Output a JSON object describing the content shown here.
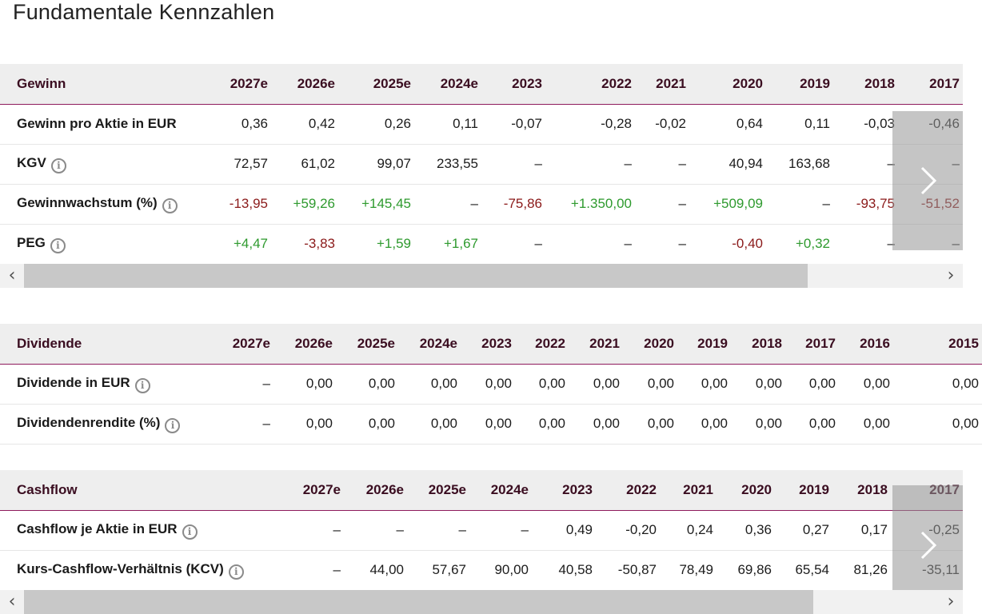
{
  "page": {
    "title": "Fundamentale Kennzahlen"
  },
  "gewinn": {
    "header": [
      "Gewinn",
      "2027e",
      "2026e",
      "2025e",
      "2024e",
      "2023",
      "2022",
      "2021",
      "2020",
      "2019",
      "2018",
      "2017"
    ],
    "rows": [
      {
        "label": "Gewinn pro Aktie in EUR",
        "info": false,
        "cells": [
          {
            "v": "0,36",
            "c": "neutral"
          },
          {
            "v": "0,42",
            "c": "neutral"
          },
          {
            "v": "0,26",
            "c": "neutral"
          },
          {
            "v": "0,11",
            "c": "neutral"
          },
          {
            "v": "-0,07",
            "c": "neutral"
          },
          {
            "v": "-0,28",
            "c": "neutral"
          },
          {
            "v": "-0,02",
            "c": "neutral"
          },
          {
            "v": "0,64",
            "c": "neutral"
          },
          {
            "v": "0,11",
            "c": "neutral"
          },
          {
            "v": "-0,03",
            "c": "neutral"
          },
          {
            "v": "-0,46",
            "c": "neutral"
          }
        ]
      },
      {
        "label": "KGV",
        "info": true,
        "cells": [
          {
            "v": "72,57",
            "c": "neutral"
          },
          {
            "v": "61,02",
            "c": "neutral"
          },
          {
            "v": "99,07",
            "c": "neutral"
          },
          {
            "v": "233,55",
            "c": "neutral"
          },
          {
            "v": "–",
            "c": "neutral"
          },
          {
            "v": "–",
            "c": "neutral"
          },
          {
            "v": "–",
            "c": "neutral"
          },
          {
            "v": "40,94",
            "c": "neutral"
          },
          {
            "v": "163,68",
            "c": "neutral"
          },
          {
            "v": "–",
            "c": "neutral"
          },
          {
            "v": "–",
            "c": "neutral"
          }
        ]
      },
      {
        "label": "Gewinnwachstum (%)",
        "info": true,
        "cells": [
          {
            "v": "-13,95",
            "c": "neg"
          },
          {
            "v": "+59,26",
            "c": "pos"
          },
          {
            "v": "+145,45",
            "c": "pos"
          },
          {
            "v": "–",
            "c": "neutral"
          },
          {
            "v": "-75,86",
            "c": "neg"
          },
          {
            "v": "+1.350,00",
            "c": "pos"
          },
          {
            "v": "–",
            "c": "neutral"
          },
          {
            "v": "+509,09",
            "c": "pos"
          },
          {
            "v": "–",
            "c": "neutral"
          },
          {
            "v": "-93,75",
            "c": "neg"
          },
          {
            "v": "-51,52",
            "c": "neg"
          }
        ]
      },
      {
        "label": "PEG",
        "info": true,
        "cells": [
          {
            "v": "+4,47",
            "c": "pos"
          },
          {
            "v": "-3,83",
            "c": "neg"
          },
          {
            "v": "+1,59",
            "c": "pos"
          },
          {
            "v": "+1,67",
            "c": "pos"
          },
          {
            "v": "–",
            "c": "neutral"
          },
          {
            "v": "–",
            "c": "neutral"
          },
          {
            "v": "–",
            "c": "neutral"
          },
          {
            "v": "-0,40",
            "c": "neg"
          },
          {
            "v": "+0,32",
            "c": "pos"
          },
          {
            "v": "–",
            "c": "neutral"
          },
          {
            "v": "–",
            "c": "neutral"
          }
        ]
      }
    ],
    "scroll_fraction": 0.85
  },
  "dividende": {
    "header": [
      "Dividende",
      "2027e",
      "2026e",
      "2025e",
      "2024e",
      "2023",
      "2022",
      "2021",
      "2020",
      "2019",
      "2018",
      "2017",
      "2016",
      "2015"
    ],
    "rows": [
      {
        "label": "Dividende in EUR",
        "info": true,
        "cells": [
          {
            "v": "–",
            "c": "neutral"
          },
          {
            "v": "0,00",
            "c": "neutral"
          },
          {
            "v": "0,00",
            "c": "neutral"
          },
          {
            "v": "0,00",
            "c": "neutral"
          },
          {
            "v": "0,00",
            "c": "neutral"
          },
          {
            "v": "0,00",
            "c": "neutral"
          },
          {
            "v": "0,00",
            "c": "neutral"
          },
          {
            "v": "0,00",
            "c": "neutral"
          },
          {
            "v": "0,00",
            "c": "neutral"
          },
          {
            "v": "0,00",
            "c": "neutral"
          },
          {
            "v": "0,00",
            "c": "neutral"
          },
          {
            "v": "0,00",
            "c": "neutral"
          },
          {
            "v": "0,00",
            "c": "neutral"
          }
        ]
      },
      {
        "label": "Dividendenrendite (%)",
        "info": true,
        "cells": [
          {
            "v": "–",
            "c": "neutral"
          },
          {
            "v": "0,00",
            "c": "neutral"
          },
          {
            "v": "0,00",
            "c": "neutral"
          },
          {
            "v": "0,00",
            "c": "neutral"
          },
          {
            "v": "0,00",
            "c": "neutral"
          },
          {
            "v": "0,00",
            "c": "neutral"
          },
          {
            "v": "0,00",
            "c": "neutral"
          },
          {
            "v": "0,00",
            "c": "neutral"
          },
          {
            "v": "0,00",
            "c": "neutral"
          },
          {
            "v": "0,00",
            "c": "neutral"
          },
          {
            "v": "0,00",
            "c": "neutral"
          },
          {
            "v": "0,00",
            "c": "neutral"
          },
          {
            "v": "0,00",
            "c": "neutral"
          }
        ]
      }
    ]
  },
  "cashflow": {
    "header": [
      "Cashflow",
      "2027e",
      "2026e",
      "2025e",
      "2024e",
      "2023",
      "2022",
      "2021",
      "2020",
      "2019",
      "2018",
      "2017"
    ],
    "rows": [
      {
        "label": "Cashflow je Aktie in EUR",
        "info": true,
        "cells": [
          {
            "v": "–",
            "c": "neutral"
          },
          {
            "v": "–",
            "c": "neutral"
          },
          {
            "v": "–",
            "c": "neutral"
          },
          {
            "v": "–",
            "c": "neutral"
          },
          {
            "v": "0,49",
            "c": "neutral"
          },
          {
            "v": "-0,20",
            "c": "neutral"
          },
          {
            "v": "0,24",
            "c": "neutral"
          },
          {
            "v": "0,36",
            "c": "neutral"
          },
          {
            "v": "0,27",
            "c": "neutral"
          },
          {
            "v": "0,17",
            "c": "neutral"
          },
          {
            "v": "-0,25",
            "c": "neutral"
          }
        ]
      },
      {
        "label": "Kurs-Cashflow-Verhältnis (KCV)",
        "info": true,
        "cells": [
          {
            "v": "–",
            "c": "neutral"
          },
          {
            "v": "44,00",
            "c": "neutral"
          },
          {
            "v": "57,67",
            "c": "neutral"
          },
          {
            "v": "90,00",
            "c": "neutral"
          },
          {
            "v": "40,58",
            "c": "neutral"
          },
          {
            "v": "-50,87",
            "c": "neutral"
          },
          {
            "v": "78,49",
            "c": "neutral"
          },
          {
            "v": "69,86",
            "c": "neutral"
          },
          {
            "v": "65,54",
            "c": "neutral"
          },
          {
            "v": "81,26",
            "c": "neutral"
          },
          {
            "v": "-35,11",
            "c": "neutral"
          }
        ]
      }
    ],
    "scroll_fraction": 0.86
  },
  "controls": {
    "scroll_left_glyph": "‹",
    "scroll_right_glyph": "›",
    "info_glyph": "i",
    "next_icon": "chevron-right-icon"
  },
  "colors": {
    "accent": "#8e1a5c",
    "positive": "#2e9a2e",
    "negative": "#8b1a1a",
    "header_bg": "#eeeeee"
  }
}
